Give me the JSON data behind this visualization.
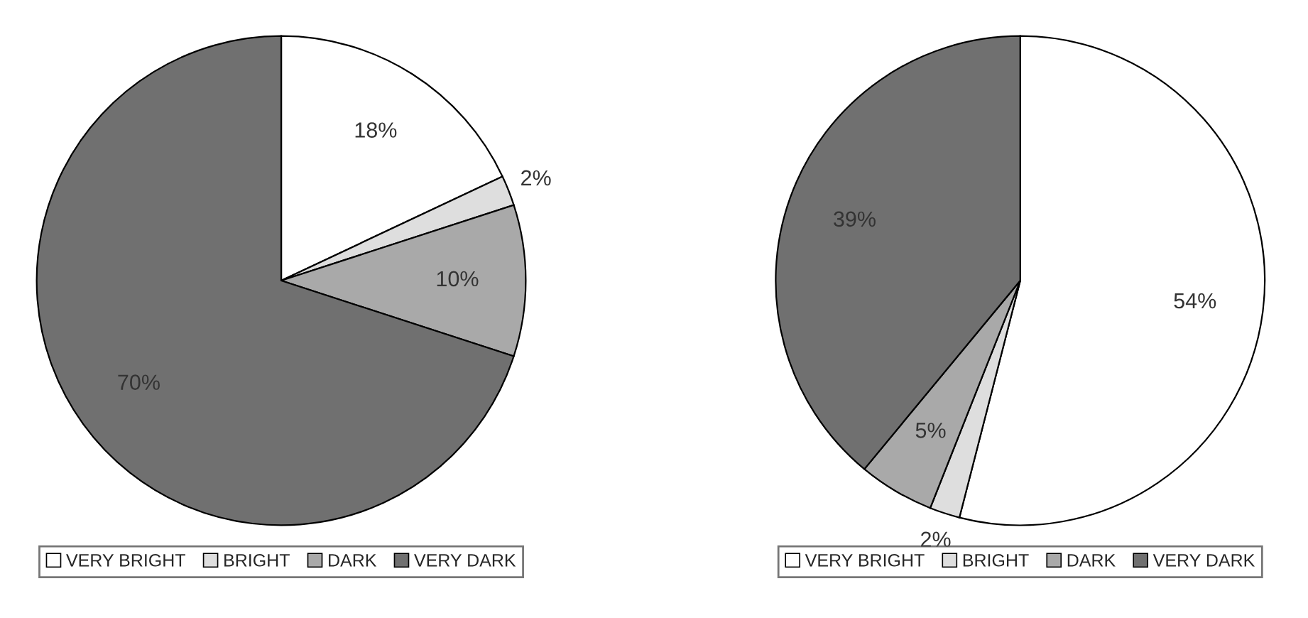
{
  "chart_data": [
    {
      "type": "pie",
      "categories": [
        "VERY BRIGHT",
        "BRIGHT",
        "DARK",
        "VERY DARK"
      ],
      "values": [
        18,
        2,
        10,
        70
      ],
      "value_labels": [
        "18%",
        "2%",
        "10%",
        "70%"
      ],
      "colors": [
        "#ffffff",
        "#dedede",
        "#a9a9a9",
        "#707070"
      ],
      "legend": "bottom"
    },
    {
      "type": "pie",
      "categories": [
        "VERY BRIGHT",
        "BRIGHT",
        "DARK",
        "VERY DARK"
      ],
      "values": [
        54,
        2,
        5,
        39
      ],
      "value_labels": [
        "54%",
        "2%",
        "5%",
        "39%"
      ],
      "colors": [
        "#ffffff",
        "#dedede",
        "#a9a9a9",
        "#707070"
      ],
      "legend": "bottom"
    }
  ]
}
